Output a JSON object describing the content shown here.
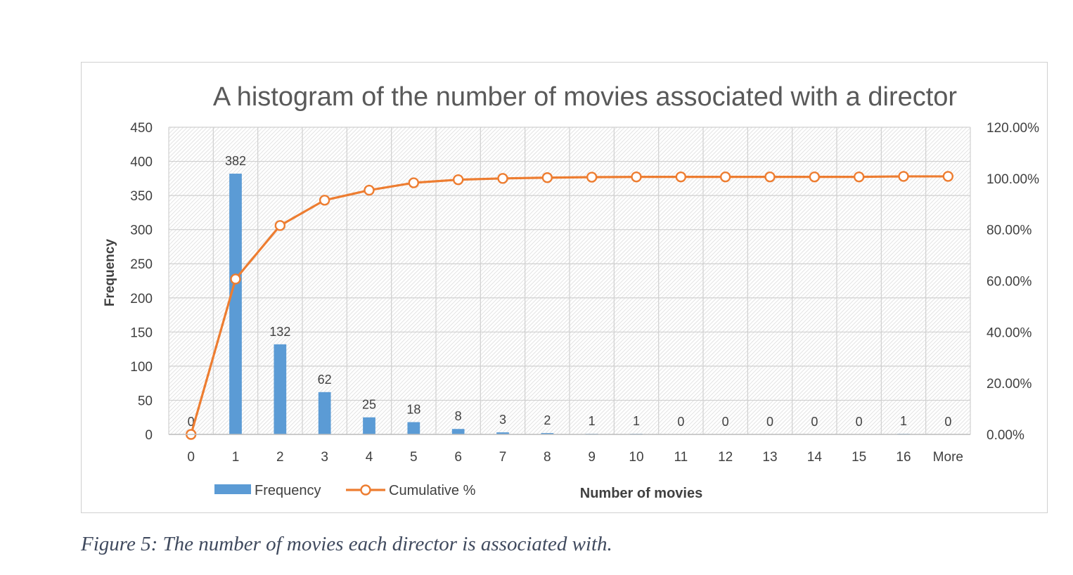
{
  "chart_data": {
    "type": "bar",
    "title": "A histogram of the number of movies associated with a director",
    "xlabel": "Number of movies",
    "ylabel": "Frequency",
    "categories": [
      "0",
      "1",
      "2",
      "3",
      "4",
      "5",
      "6",
      "7",
      "8",
      "9",
      "10",
      "11",
      "12",
      "13",
      "14",
      "15",
      "16",
      "More"
    ],
    "series": [
      {
        "name": "Frequency",
        "kind": "bar",
        "axis": "left",
        "color": "#5b9bd5",
        "values": [
          0,
          382,
          132,
          62,
          25,
          18,
          8,
          3,
          2,
          1,
          1,
          0,
          0,
          0,
          0,
          0,
          1,
          0
        ]
      },
      {
        "name": "Cumulative %",
        "kind": "line",
        "axis": "right",
        "color": "#ed7d31",
        "values": [
          0,
          60.7,
          81.6,
          91.5,
          95.4,
          98.3,
          99.5,
          100.0,
          100.3,
          100.5,
          100.6,
          100.6,
          100.6,
          100.6,
          100.6,
          100.6,
          100.8,
          100.8
        ]
      }
    ],
    "ylim": [
      0,
      450
    ],
    "y_ticks": [
      0,
      50,
      100,
      150,
      200,
      250,
      300,
      350,
      400,
      450
    ],
    "y2lim": [
      0,
      120
    ],
    "y2_ticks": [
      0,
      20,
      40,
      60,
      80,
      100,
      120
    ],
    "y2_tick_labels": [
      "0.00%",
      "20.00%",
      "40.00%",
      "60.00%",
      "80.00%",
      "100.00%",
      "120.00%"
    ],
    "grid": true,
    "legend": "bottom-left"
  },
  "caption": "Figure 5: The number of movies each director is associated with."
}
